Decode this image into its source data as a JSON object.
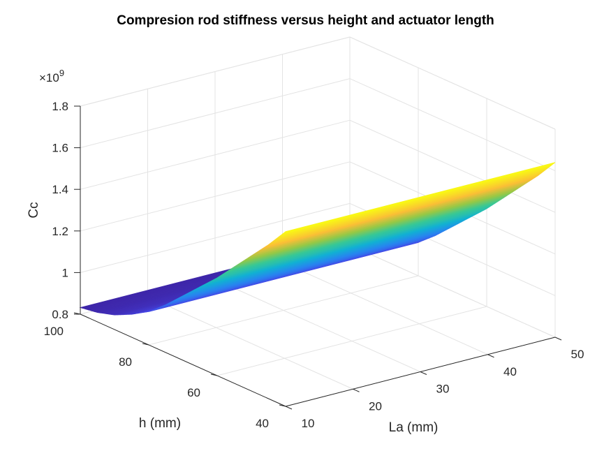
{
  "chart_data": {
    "type": "surface",
    "title": "Compresion rod stiffness versus height and actuator length",
    "xlabel": "La (mm)",
    "ylabel": "h (mm)",
    "zlabel": "Cc",
    "z_exponent_label": "×10",
    "z_exponent_power": "9",
    "xlim": [
      10,
      50
    ],
    "ylim": [
      40,
      100
    ],
    "zlim": [
      0.8,
      1.8
    ],
    "xticks": [
      10,
      20,
      30,
      40,
      50
    ],
    "yticks": [
      40,
      60,
      80,
      100
    ],
    "zticks": [
      0.8,
      1,
      1.2,
      1.4,
      1.6,
      1.8
    ],
    "zticklabels": [
      "0.8",
      "1",
      "1.2",
      "1.4",
      "1.6",
      "1.8"
    ],
    "grid": true,
    "colormap": "parula",
    "surface": {
      "La": [
        10,
        50
      ],
      "h": [
        40,
        45,
        50,
        55,
        60,
        65,
        70,
        75,
        80,
        85,
        90,
        95,
        100
      ],
      "Cc_at_La_10": [
        1.64,
        1.54,
        1.45,
        1.36,
        1.27,
        1.19,
        1.11,
        1.03,
        0.96,
        0.91,
        0.87,
        0.845,
        0.832
      ],
      "Cc_at_La_50": [
        1.64,
        1.54,
        1.45,
        1.36,
        1.27,
        1.19,
        1.11,
        1.03,
        0.96,
        0.91,
        0.87,
        0.845,
        0.832
      ]
    }
  }
}
